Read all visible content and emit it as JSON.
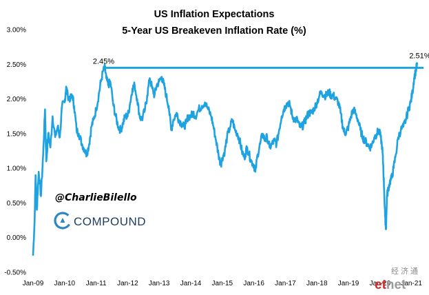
{
  "chart_data": {
    "type": "line",
    "title": "US Inflation Expectations",
    "subtitle": "5-Year US Breakeven Inflation Rate (%)",
    "xlabel": "",
    "ylabel": "",
    "ylim": [
      -0.5,
      3.0
    ],
    "yticks": [
      "3.00%",
      "2.50%",
      "2.00%",
      "1.50%",
      "1.00%",
      "0.50%",
      "0.00%",
      "-0.50%"
    ],
    "ytick_values": [
      3.0,
      2.5,
      2.0,
      1.5,
      1.0,
      0.5,
      0.0,
      -0.5
    ],
    "xticks": [
      "Jan-09",
      "Jan-10",
      "Jan-11",
      "Jan-12",
      "Jan-13",
      "Jan-14",
      "Jan-15",
      "Jan-16",
      "Jan-17",
      "Jan-18",
      "Jan-19",
      "Jan-20",
      "Jan-21"
    ],
    "xlim": [
      2009.0,
      2021.4
    ],
    "grid": false,
    "legend": "none",
    "series": [
      {
        "color": "#1fa2e0",
        "points": [
          [
            2009.0,
            -0.25
          ],
          [
            2009.05,
            0.25
          ],
          [
            2009.08,
            0.9
          ],
          [
            2009.12,
            0.4
          ],
          [
            2009.18,
            0.95
          ],
          [
            2009.25,
            0.6
          ],
          [
            2009.32,
            1.2
          ],
          [
            2009.38,
            1.85
          ],
          [
            2009.42,
            1.1
          ],
          [
            2009.48,
            1.5
          ],
          [
            2009.55,
            1.3
          ],
          [
            2009.62,
            1.75
          ],
          [
            2009.7,
            1.45
          ],
          [
            2009.78,
            1.6
          ],
          [
            2009.85,
            1.45
          ],
          [
            2009.92,
            1.9
          ],
          [
            2010.0,
            1.95
          ],
          [
            2010.05,
            2.18
          ],
          [
            2010.1,
            2.05
          ],
          [
            2010.18,
            2.0
          ],
          [
            2010.25,
            2.05
          ],
          [
            2010.3,
            1.9
          ],
          [
            2010.38,
            1.55
          ],
          [
            2010.45,
            1.5
          ],
          [
            2010.55,
            1.35
          ],
          [
            2010.62,
            1.28
          ],
          [
            2010.7,
            1.2
          ],
          [
            2010.78,
            1.35
          ],
          [
            2010.85,
            1.6
          ],
          [
            2010.92,
            1.7
          ],
          [
            2011.0,
            1.85
          ],
          [
            2011.08,
            2.05
          ],
          [
            2011.15,
            2.25
          ],
          [
            2011.22,
            2.4
          ],
          [
            2011.28,
            2.45
          ],
          [
            2011.32,
            2.3
          ],
          [
            2011.38,
            2.2
          ],
          [
            2011.45,
            2.25
          ],
          [
            2011.55,
            1.9
          ],
          [
            2011.62,
            1.75
          ],
          [
            2011.7,
            1.6
          ],
          [
            2011.78,
            1.55
          ],
          [
            2011.85,
            1.65
          ],
          [
            2011.92,
            1.75
          ],
          [
            2012.0,
            1.75
          ],
          [
            2012.08,
            1.95
          ],
          [
            2012.15,
            2.15
          ],
          [
            2012.22,
            2.2
          ],
          [
            2012.3,
            2.0
          ],
          [
            2012.38,
            1.75
          ],
          [
            2012.45,
            1.7
          ],
          [
            2012.55,
            1.85
          ],
          [
            2012.62,
            2.05
          ],
          [
            2012.7,
            2.3
          ],
          [
            2012.78,
            2.15
          ],
          [
            2012.85,
            2.05
          ],
          [
            2012.92,
            2.2
          ],
          [
            2013.0,
            2.25
          ],
          [
            2013.08,
            2.32
          ],
          [
            2013.15,
            2.2
          ],
          [
            2013.22,
            2.05
          ],
          [
            2013.3,
            1.9
          ],
          [
            2013.38,
            1.55
          ],
          [
            2013.45,
            1.7
          ],
          [
            2013.55,
            1.8
          ],
          [
            2013.62,
            1.7
          ],
          [
            2013.7,
            1.65
          ],
          [
            2013.78,
            1.6
          ],
          [
            2013.85,
            1.65
          ],
          [
            2013.92,
            1.75
          ],
          [
            2014.0,
            1.75
          ],
          [
            2014.08,
            1.8
          ],
          [
            2014.15,
            1.75
          ],
          [
            2014.25,
            1.85
          ],
          [
            2014.35,
            1.9
          ],
          [
            2014.45,
            1.95
          ],
          [
            2014.55,
            1.85
          ],
          [
            2014.65,
            1.75
          ],
          [
            2014.72,
            1.6
          ],
          [
            2014.8,
            1.4
          ],
          [
            2014.88,
            1.2
          ],
          [
            2014.95,
            1.05
          ],
          [
            2015.0,
            1.15
          ],
          [
            2015.08,
            1.25
          ],
          [
            2015.15,
            1.45
          ],
          [
            2015.25,
            1.6
          ],
          [
            2015.32,
            1.7
          ],
          [
            2015.4,
            1.55
          ],
          [
            2015.48,
            1.5
          ],
          [
            2015.55,
            1.4
          ],
          [
            2015.62,
            1.25
          ],
          [
            2015.7,
            1.15
          ],
          [
            2015.78,
            1.3
          ],
          [
            2015.85,
            1.2
          ],
          [
            2015.92,
            1.1
          ],
          [
            2016.0,
            1.05
          ],
          [
            2016.05,
            0.95
          ],
          [
            2016.12,
            1.2
          ],
          [
            2016.2,
            1.35
          ],
          [
            2016.28,
            1.5
          ],
          [
            2016.35,
            1.4
          ],
          [
            2016.42,
            1.45
          ],
          [
            2016.5,
            1.3
          ],
          [
            2016.58,
            1.35
          ],
          [
            2016.65,
            1.4
          ],
          [
            2016.72,
            1.35
          ],
          [
            2016.8,
            1.55
          ],
          [
            2016.88,
            1.75
          ],
          [
            2016.95,
            1.85
          ],
          [
            2017.0,
            1.9
          ],
          [
            2017.08,
            1.95
          ],
          [
            2017.15,
            1.9
          ],
          [
            2017.22,
            1.75
          ],
          [
            2017.3,
            1.7
          ],
          [
            2017.38,
            1.7
          ],
          [
            2017.45,
            1.6
          ],
          [
            2017.52,
            1.6
          ],
          [
            2017.6,
            1.65
          ],
          [
            2017.68,
            1.75
          ],
          [
            2017.75,
            1.8
          ],
          [
            2017.82,
            1.8
          ],
          [
            2017.9,
            1.85
          ],
          [
            2018.0,
            1.95
          ],
          [
            2018.08,
            2.05
          ],
          [
            2018.15,
            2.1
          ],
          [
            2018.22,
            2.05
          ],
          [
            2018.3,
            2.05
          ],
          [
            2018.38,
            2.1
          ],
          [
            2018.45,
            2.05
          ],
          [
            2018.52,
            2.05
          ],
          [
            2018.6,
            2.0
          ],
          [
            2018.68,
            1.95
          ],
          [
            2018.75,
            1.8
          ],
          [
            2018.82,
            1.6
          ],
          [
            2018.88,
            1.5
          ],
          [
            2018.95,
            1.55
          ],
          [
            2019.0,
            1.6
          ],
          [
            2019.08,
            1.75
          ],
          [
            2019.15,
            1.85
          ],
          [
            2019.22,
            1.8
          ],
          [
            2019.3,
            1.7
          ],
          [
            2019.38,
            1.55
          ],
          [
            2019.45,
            1.45
          ],
          [
            2019.52,
            1.4
          ],
          [
            2019.6,
            1.35
          ],
          [
            2019.68,
            1.3
          ],
          [
            2019.75,
            1.35
          ],
          [
            2019.82,
            1.45
          ],
          [
            2019.9,
            1.5
          ],
          [
            2019.96,
            1.55
          ],
          [
            2020.02,
            1.45
          ],
          [
            2020.07,
            1.3
          ],
          [
            2020.1,
            1.05
          ],
          [
            2020.13,
            0.7
          ],
          [
            2020.16,
            0.3
          ],
          [
            2020.19,
            0.12
          ],
          [
            2020.22,
            0.6
          ],
          [
            2020.26,
            0.7
          ],
          [
            2020.31,
            0.8
          ],
          [
            2020.36,
            0.85
          ],
          [
            2020.43,
            1.0
          ],
          [
            2020.5,
            1.2
          ],
          [
            2020.58,
            1.45
          ],
          [
            2020.66,
            1.55
          ],
          [
            2020.74,
            1.6
          ],
          [
            2020.82,
            1.7
          ],
          [
            2020.9,
            1.85
          ],
          [
            2020.97,
            1.95
          ],
          [
            2021.03,
            2.1
          ],
          [
            2021.08,
            2.3
          ],
          [
            2021.13,
            2.4
          ],
          [
            2021.18,
            2.51
          ]
        ]
      }
    ],
    "reference_line": {
      "value": 2.45,
      "color": "#1fa2e0"
    },
    "annotations": [
      {
        "label": "2.45%",
        "x": 2011.28,
        "y": 2.45
      },
      {
        "label": "2.51%",
        "x": 2021.18,
        "y": 2.51
      }
    ]
  },
  "branding": {
    "handle": "@CharlieBilello",
    "company": "COMPOUND",
    "logo_icon": "compound-c-logo",
    "watermark_cn": "经济通",
    "watermark_a": "et",
    "watermark_b": "net"
  }
}
